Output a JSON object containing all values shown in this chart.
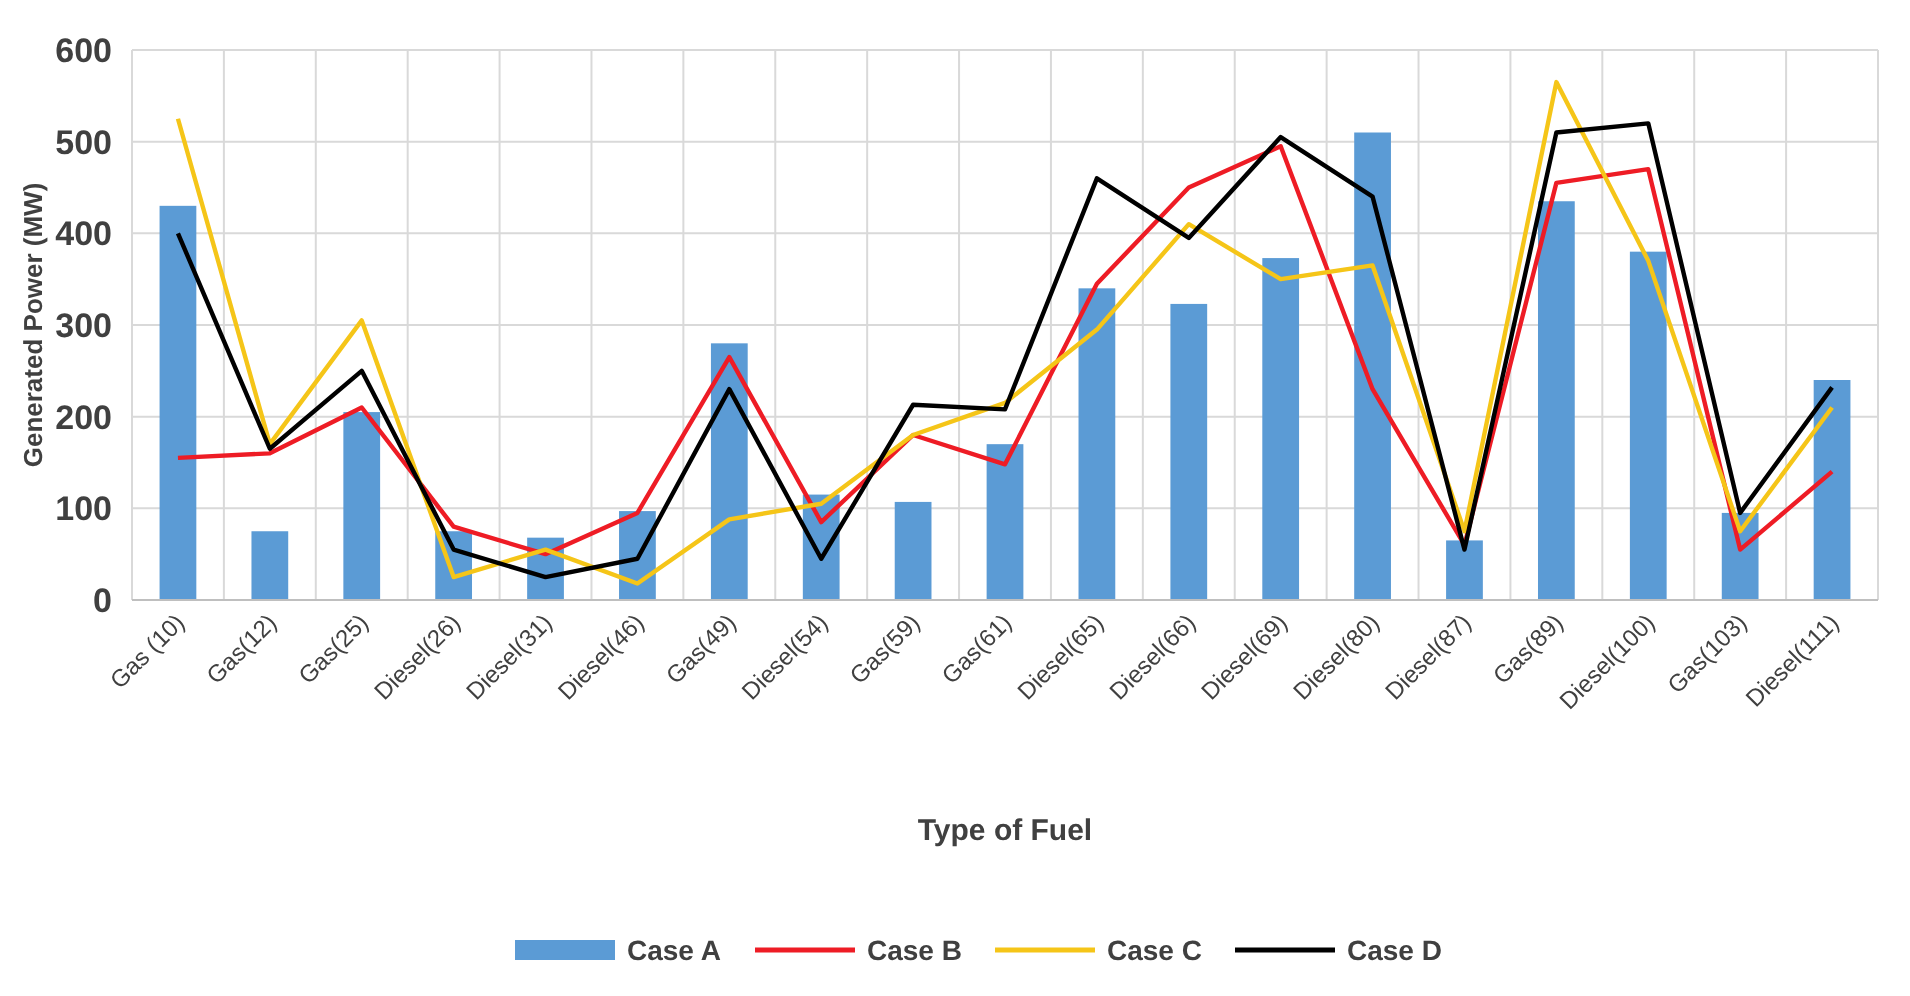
{
  "chart_data": {
    "type": "bar",
    "xlabel": "Type of Fuel",
    "ylabel": "Generated Power  (MW)",
    "categories": [
      "Gas (10)",
      "Gas(12)",
      "Gas(25)",
      "Diesel(26)",
      "Diesel(31)",
      "Diesel(46)",
      "Gas(49)",
      "Diesel(54)",
      "Gas(59)",
      "Gas(61)",
      "Diesel(65)",
      "Diesel(66)",
      "Diesel(69)",
      "Diesel(80)",
      "Diesel(87)",
      "Gas(89)",
      "Diesel(100)",
      "Gas(103)",
      "Diesel(111)"
    ],
    "series": [
      {
        "name": "Case A",
        "color": "#5b9bd5",
        "values": [
          430,
          75,
          205,
          75,
          68,
          97,
          280,
          115,
          107,
          170,
          340,
          323,
          373,
          510,
          65,
          435,
          380,
          95,
          240
        ]
      },
      {
        "name": "Case B",
        "type": "line",
        "color": "#ee1c25",
        "values": [
          155,
          160,
          210,
          80,
          50,
          95,
          265,
          85,
          180,
          148,
          345,
          450,
          495,
          230,
          60,
          455,
          470,
          55,
          140
        ]
      },
      {
        "name": "Case C",
        "type": "line",
        "color": "#f5c518",
        "values": [
          525,
          170,
          305,
          25,
          55,
          18,
          88,
          105,
          180,
          215,
          295,
          410,
          350,
          365,
          75,
          565,
          370,
          75,
          210
        ]
      },
      {
        "name": "Case D",
        "type": "line",
        "color": "#000000",
        "values": [
          400,
          165,
          250,
          55,
          25,
          45,
          230,
          45,
          213,
          208,
          460,
          395,
          505,
          440,
          55,
          510,
          520,
          95,
          232
        ]
      }
    ],
    "ylim": [
      0,
      600
    ],
    "yticks": [
      0,
      100,
      200,
      300,
      400,
      500,
      600
    ],
    "grid": true,
    "legend": "bottom",
    "marker": "none",
    "line_style": "solid"
  }
}
